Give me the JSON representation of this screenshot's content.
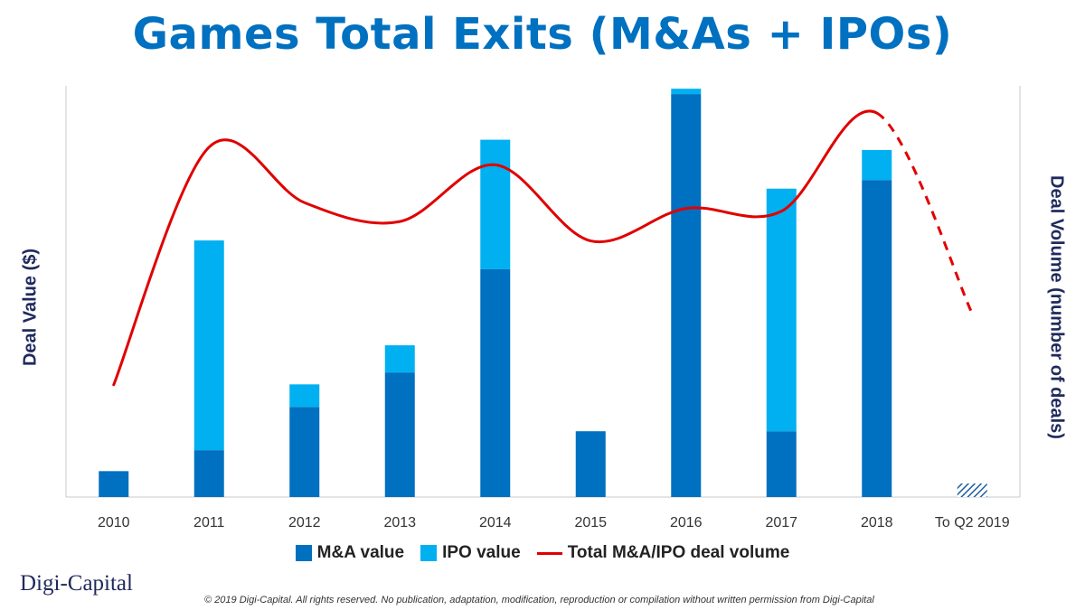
{
  "title": "Games Total Exits (M&As + IPOs)",
  "ylabel_left": "Deal Value ($)",
  "ylabel_right": "Deal Volume (number of deals)",
  "legend": {
    "ma": "M&A value",
    "ipo": "IPO value",
    "volume": "Total M&A/IPO deal volume"
  },
  "colors": {
    "ma": "#0070C0",
    "ipo": "#00B0F0",
    "volume": "#E00000",
    "partial_fill": "#1F5F9F"
  },
  "logo": "Digi-Capital",
  "footer": "© 2019 Digi-Capital. All rights reserved. No publication, adaptation, modification, reproduction or compilation without written permission from Digi-Capital",
  "chart_data": {
    "type": "bar",
    "stacked": true,
    "categories": [
      "2010",
      "2011",
      "2012",
      "2013",
      "2014",
      "2015",
      "2016",
      "2017",
      "2018",
      "To Q2 2019"
    ],
    "series": [
      {
        "name": "M&A value",
        "values": [
          6.3,
          11.4,
          21.9,
          30.3,
          55.4,
          16.0,
          98.0,
          16.0,
          77.1,
          3.3
        ],
        "partial_hatch_last": true
      },
      {
        "name": "IPO value",
        "values": [
          0,
          51.0,
          5.5,
          6.6,
          31.5,
          0,
          1.3,
          59.0,
          7.3,
          0
        ]
      }
    ],
    "line_series": {
      "name": "Total M&A/IPO deal volume",
      "axis": "right",
      "values": [
        27.3,
        85.1,
        71.6,
        67.0,
        80.8,
        62.3,
        70.2,
        69.5,
        93.4,
        44.6
      ],
      "dashed_from_index": 8
    },
    "ylim": [
      0,
      100
    ],
    "y2lim": [
      0,
      100
    ],
    "y_ticks_shown": false,
    "grid": false,
    "legend_position": "bottom"
  }
}
